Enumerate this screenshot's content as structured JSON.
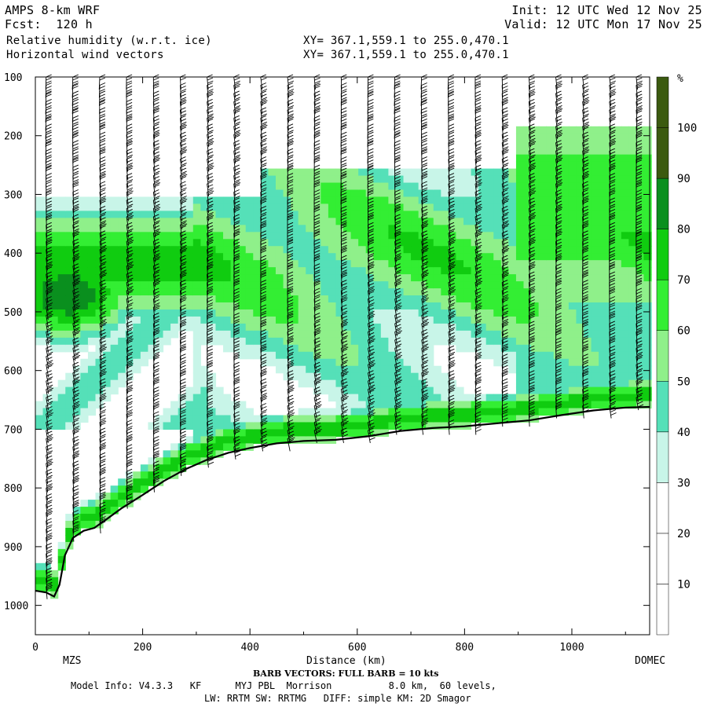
{
  "header": {
    "model": "AMPS 8-km WRF",
    "forecast": "Fcst:  120 h",
    "field1": "Relative humidity (w.r.t. ice)",
    "field2": "Horizontal wind vectors",
    "xy1": "XY= 367.1,559.1 to 255.0,470.1",
    "xy2": "XY= 367.1,559.1 to 255.0,470.1",
    "init": "Init: 12 UTC Wed 12 Nov 25",
    "valid": "Valid: 12 UTC Mon 17 Nov 25"
  },
  "footer": {
    "left_station": "MZS",
    "right_station": "DOMEC",
    "barb_note": "BARB VECTORS: FULL BARB = 10 kts",
    "model_info": "Model Info: V4.3.3   KF      MYJ PBL  Morrison          8.0 km,  60 levels,",
    "physics": "LW: RRTM SW: RRTMG   DIFF: simple KM: 2D Smagor"
  },
  "colorbar": {
    "unit": "%",
    "levels": [
      10,
      20,
      30,
      40,
      50,
      60,
      70,
      80,
      90,
      100
    ],
    "colors": [
      "#ffffff",
      "#ffffff",
      "#ffffff",
      "#c8f5e8",
      "#55e0b8",
      "#8ff08a",
      "#33ee33",
      "#10cc10",
      "#0a8f1e",
      "#3b5a10"
    ]
  },
  "chart_data": {
    "type": "heatmap",
    "title": "Relative humidity (w.r.t. ice)",
    "xlabel": "Distance (km)",
    "ylabel": "",
    "xlim": [
      0,
      1145
    ],
    "ylim": [
      1050,
      100
    ],
    "x_ticks": [
      0,
      200,
      400,
      600,
      800,
      1000
    ],
    "y_ticks": [
      100,
      200,
      300,
      400,
      500,
      600,
      700,
      800,
      900,
      1000
    ],
    "terrain_surface_pressure": {
      "x": [
        0,
        20,
        35,
        45,
        55,
        70,
        90,
        110,
        130,
        160,
        200,
        240,
        280,
        320,
        360,
        400,
        450,
        500,
        560,
        620,
        680,
        740,
        800,
        860,
        920,
        980,
        1040,
        1100,
        1145
      ],
      "p": [
        975,
        978,
        985,
        965,
        915,
        885,
        873,
        868,
        855,
        835,
        812,
        788,
        768,
        752,
        740,
        732,
        724,
        720,
        718,
        712,
        703,
        698,
        695,
        690,
        685,
        676,
        668,
        663,
        662
      ]
    },
    "moist_layers": [
      {
        "x": [
          0,
          300
        ],
        "p": [
          330,
          620
        ],
        "peak_rh": 100
      },
      {
        "x": [
          300,
          1145
        ],
        "p": [
          240,
          690
        ],
        "peak_rh": 80
      },
      {
        "x": [
          0,
          1145
        ],
        "p": [
          650,
          740
        ],
        "peak_rh": 90
      }
    ],
    "barb_columns_x": [
      20,
      70,
      120,
      170,
      220,
      270,
      320,
      370,
      420,
      470,
      520,
      570,
      620,
      670,
      720,
      770,
      820,
      870,
      920,
      970,
      1020,
      1070,
      1120
    ]
  }
}
